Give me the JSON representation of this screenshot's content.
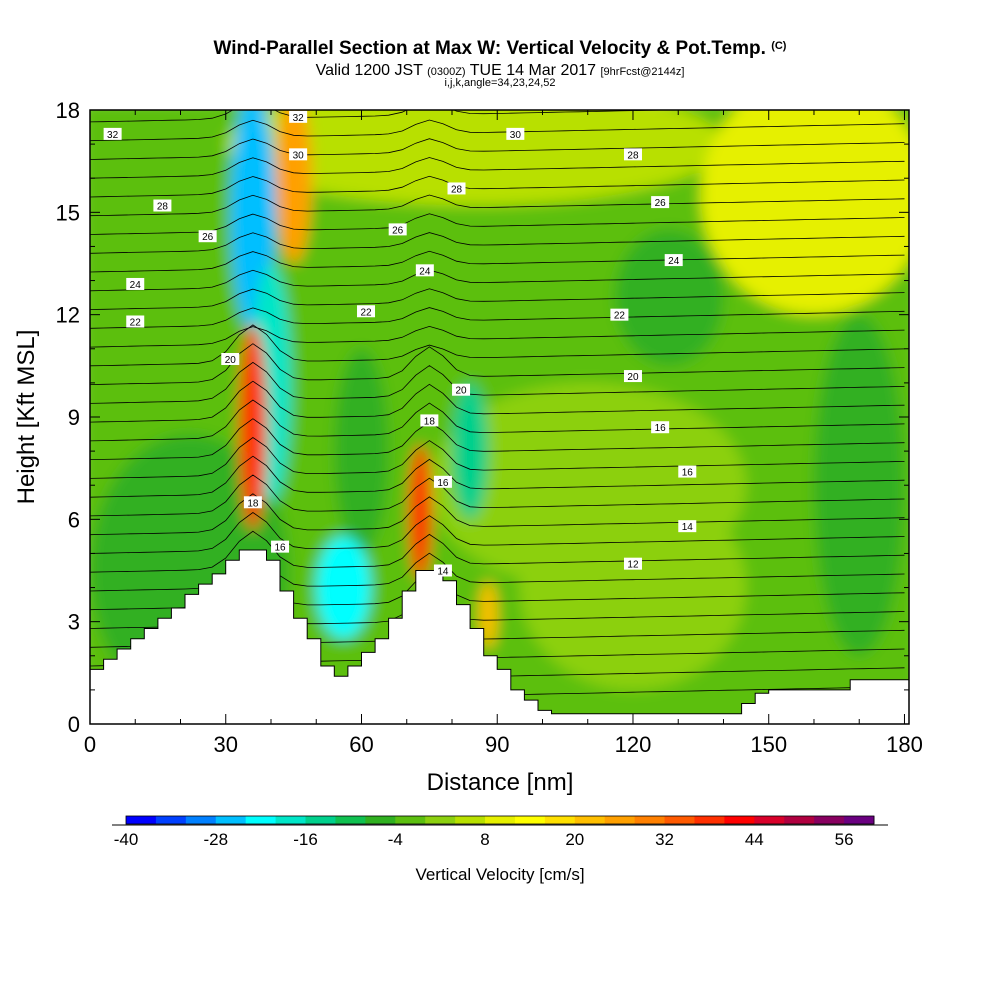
{
  "header": {
    "title": "Wind-Parallel Section at Max W: Vertical Velocity & Pot.Temp.",
    "copyright_mark": "(C)",
    "valid_prefix": "Valid 1200 JST",
    "valid_utc": "(0300Z)",
    "valid_date": "TUE 14 Mar 2017",
    "forecast_tag": "[9hrFcst@2144z]",
    "indices": "i,j,k,angle=34,23,24,52"
  },
  "chart_data": {
    "type": "heatmap",
    "title": "Wind-Parallel Section at Max W: Vertical Velocity & Pot.Temp.",
    "xlabel": "Distance [nm]",
    "ylabel": "Height [Kft MSL]",
    "xlim": [
      0,
      181
    ],
    "ylim": [
      0,
      18
    ],
    "x_ticks": [
      0,
      30,
      60,
      90,
      120,
      150,
      180
    ],
    "y_ticks": [
      0,
      3,
      6,
      9,
      12,
      15,
      18
    ],
    "colorbar": {
      "label": "Vertical Velocity [cm/s]",
      "range": [
        -40,
        60
      ],
      "tick_values": [
        -40,
        -28,
        -16,
        -4,
        8,
        20,
        32,
        44,
        56
      ],
      "colors": [
        "#0000ff",
        "#0040ff",
        "#0080ff",
        "#00bfff",
        "#00ffff",
        "#00e6c8",
        "#00d08c",
        "#10c050",
        "#30b020",
        "#5cbf10",
        "#8cd010",
        "#b8e000",
        "#e6f000",
        "#ffff00",
        "#ffe000",
        "#ffbf00",
        "#ffa000",
        "#ff8000",
        "#ff5a00",
        "#ff3000",
        "#ff0000",
        "#d8002a",
        "#b00040",
        "#880060",
        "#6a0080"
      ]
    },
    "isentrope_labels": [
      {
        "x": 5,
        "y": 17.3,
        "text": "32"
      },
      {
        "x": 46,
        "y": 17.8,
        "text": "32"
      },
      {
        "x": 46,
        "y": 16.7,
        "text": "30"
      },
      {
        "x": 94,
        "y": 17.3,
        "text": "30"
      },
      {
        "x": 120,
        "y": 16.7,
        "text": "28"
      },
      {
        "x": 16,
        "y": 15.2,
        "text": "28"
      },
      {
        "x": 81,
        "y": 15.7,
        "text": "28"
      },
      {
        "x": 126,
        "y": 15.3,
        "text": "26"
      },
      {
        "x": 26,
        "y": 14.3,
        "text": "26"
      },
      {
        "x": 68,
        "y": 14.5,
        "text": "26"
      },
      {
        "x": 10,
        "y": 12.9,
        "text": "24"
      },
      {
        "x": 74,
        "y": 13.3,
        "text": "24"
      },
      {
        "x": 129,
        "y": 13.6,
        "text": "24"
      },
      {
        "x": 10,
        "y": 11.8,
        "text": "22"
      },
      {
        "x": 61,
        "y": 12.1,
        "text": "22"
      },
      {
        "x": 117,
        "y": 12.0,
        "text": "22"
      },
      {
        "x": 31,
        "y": 10.7,
        "text": "20"
      },
      {
        "x": 82,
        "y": 9.8,
        "text": "20"
      },
      {
        "x": 120,
        "y": 10.2,
        "text": "20"
      },
      {
        "x": 75,
        "y": 8.9,
        "text": "18"
      },
      {
        "x": 126,
        "y": 8.7,
        "text": "16"
      },
      {
        "x": 132,
        "y": 7.4,
        "text": "16"
      },
      {
        "x": 78,
        "y": 7.1,
        "text": "16"
      },
      {
        "x": 36,
        "y": 6.5,
        "text": "18"
      },
      {
        "x": 42,
        "y": 5.2,
        "text": "16"
      },
      {
        "x": 132,
        "y": 5.8,
        "text": "14"
      },
      {
        "x": 78,
        "y": 4.5,
        "text": "14"
      },
      {
        "x": 120,
        "y": 4.7,
        "text": "12"
      }
    ]
  }
}
